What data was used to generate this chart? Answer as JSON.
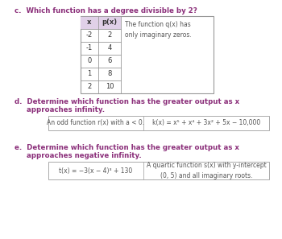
{
  "bg_color": "#ffffff",
  "label_c": "c.  Which function has a degree divisible by 2?",
  "label_d_1": "d.  Determine which function has the greater output as x",
  "label_d_2": "     approaches infinity.",
  "label_e_1": "e.  Determine which function has the greater output as x",
  "label_e_2": "     approaches negative infinity.",
  "table_headers": [
    "x",
    "p(x)"
  ],
  "table_data": [
    [
      "-2",
      "2"
    ],
    [
      "-1",
      "4"
    ],
    [
      "0",
      "6"
    ],
    [
      "1",
      "8"
    ],
    [
      "2",
      "10"
    ]
  ],
  "q_text": "The function q(x) has\nonly imaginary zeros.",
  "box_d_left": "An odd function r(x) with a < 0.",
  "box_d_right": "k(x) = x⁵ + x⁴ + 3x² + 5x − 10,000",
  "box_e_left": "t(x) = −3(x − 4)³ + 130",
  "box_e_right": "A quartic function s(x) with y-intercept\n(0, 5) and all imaginary roots.",
  "heading_color": "#8b2f7a",
  "text_color": "#555555",
  "table_header_bg": "#e0d0e8",
  "table_border_color": "#999999",
  "box_border_color": "#aaaaaa"
}
